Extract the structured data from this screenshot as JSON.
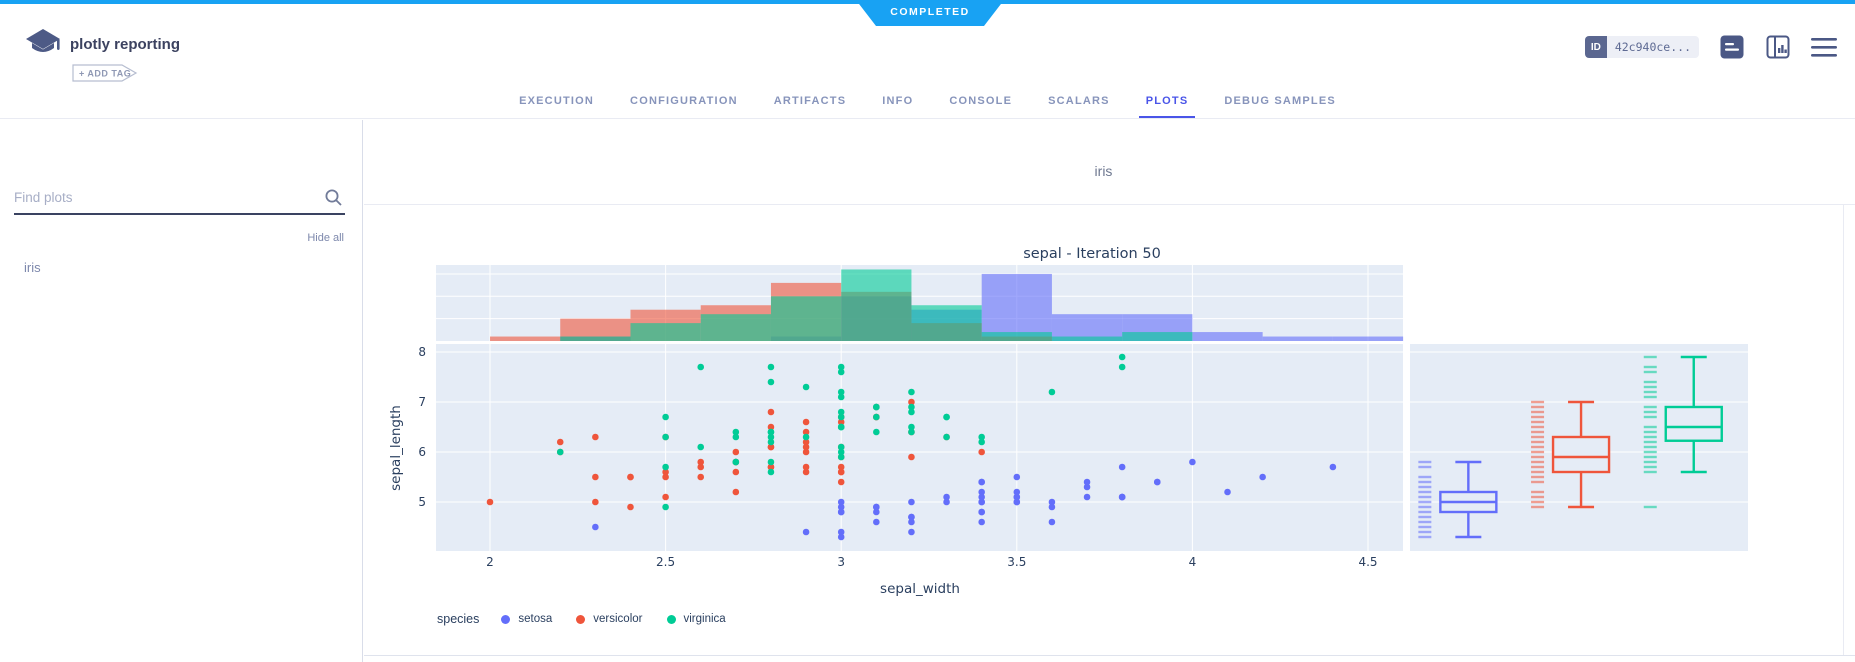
{
  "header": {
    "status_badge": "COMPLETED",
    "title": "plotly reporting",
    "add_tag_label": "+ ADD TAG",
    "id_label": "ID",
    "id_value": "42c940ce..."
  },
  "icons": {
    "logo": "experiment-logo-icon",
    "header_right": [
      "console-output-icon",
      "split-view-chart-icon",
      "menu-icon"
    ],
    "tabbar_right": "auto-refresh-icon",
    "sidebar": "search-icon"
  },
  "tabs": {
    "items": [
      "EXECUTION",
      "CONFIGURATION",
      "ARTIFACTS",
      "INFO",
      "CONSOLE",
      "SCALARS",
      "PLOTS",
      "DEBUG SAMPLES"
    ],
    "active": "PLOTS"
  },
  "sidebar": {
    "search_placeholder": "Find plots",
    "hide_all_label": "Hide all",
    "items": [
      "iris"
    ]
  },
  "content": {
    "group_title": "iris"
  },
  "colors": {
    "status_blue": "#18a2f3",
    "active_tab_blue": "#4a55e8",
    "plot_background": "#e5ecf6",
    "plot_text": "#2a3f5f"
  },
  "chart_data": {
    "type": "scatter",
    "title": "sepal - Iteration 50",
    "xlabel": "sepal_width",
    "ylabel": "sepal_length",
    "legend_title": "species",
    "x_ticks": [
      2,
      2.5,
      3,
      3.5,
      4,
      4.5
    ],
    "y_ticks": [
      5,
      6,
      7,
      8
    ],
    "xlim": [
      1.85,
      4.6
    ],
    "ylim": [
      4.02,
      8.16
    ],
    "grid": true,
    "legend_position": "bottom-left",
    "marginal_top": "overlaid histograms, bin width 0.2, count max ~17",
    "marginal_right": "box plot with rug of all points, whiskers 1.5*IQR",
    "series": [
      {
        "name": "setosa",
        "color": "#636EFA",
        "points_width_length": [
          [
            3.5,
            5.1
          ],
          [
            3.0,
            4.9
          ],
          [
            3.2,
            4.7
          ],
          [
            3.1,
            4.6
          ],
          [
            3.6,
            5.0
          ],
          [
            3.9,
            5.4
          ],
          [
            3.4,
            4.6
          ],
          [
            3.4,
            5.0
          ],
          [
            2.9,
            4.4
          ],
          [
            3.1,
            4.9
          ],
          [
            3.7,
            5.4
          ],
          [
            3.4,
            4.8
          ],
          [
            3.0,
            4.8
          ],
          [
            3.0,
            4.3
          ],
          [
            4.0,
            5.8
          ],
          [
            4.4,
            5.7
          ],
          [
            3.9,
            5.4
          ],
          [
            3.5,
            5.1
          ],
          [
            3.8,
            5.7
          ],
          [
            3.8,
            5.1
          ],
          [
            3.4,
            5.4
          ],
          [
            3.7,
            5.1
          ],
          [
            3.6,
            4.6
          ],
          [
            3.3,
            5.1
          ],
          [
            3.4,
            4.8
          ],
          [
            3.0,
            5.0
          ],
          [
            3.4,
            5.0
          ],
          [
            3.5,
            5.2
          ],
          [
            3.4,
            5.2
          ],
          [
            3.2,
            4.7
          ],
          [
            3.1,
            4.8
          ],
          [
            3.4,
            5.4
          ],
          [
            4.1,
            5.2
          ],
          [
            4.2,
            5.5
          ],
          [
            3.1,
            4.9
          ],
          [
            3.2,
            5.0
          ],
          [
            3.5,
            5.5
          ],
          [
            3.6,
            4.9
          ],
          [
            3.0,
            4.4
          ],
          [
            3.4,
            5.1
          ],
          [
            3.5,
            5.0
          ],
          [
            2.3,
            4.5
          ],
          [
            3.2,
            4.4
          ],
          [
            3.5,
            5.0
          ],
          [
            3.8,
            5.1
          ],
          [
            3.0,
            4.8
          ],
          [
            3.8,
            5.1
          ],
          [
            3.2,
            4.6
          ],
          [
            3.7,
            5.3
          ],
          [
            3.3,
            5.0
          ]
        ]
      },
      {
        "name": "versicolor",
        "color": "#EF553B",
        "points_width_length": [
          [
            3.2,
            7.0
          ],
          [
            3.2,
            6.4
          ],
          [
            3.1,
            6.9
          ],
          [
            2.3,
            5.5
          ],
          [
            2.8,
            6.5
          ],
          [
            2.8,
            5.7
          ],
          [
            3.3,
            6.3
          ],
          [
            2.4,
            4.9
          ],
          [
            2.9,
            6.6
          ],
          [
            2.7,
            5.2
          ],
          [
            2.0,
            5.0
          ],
          [
            3.0,
            5.9
          ],
          [
            2.2,
            6.0
          ],
          [
            2.9,
            6.1
          ],
          [
            2.9,
            5.6
          ],
          [
            3.1,
            6.7
          ],
          [
            3.0,
            5.6
          ],
          [
            2.7,
            5.8
          ],
          [
            2.2,
            6.2
          ],
          [
            2.5,
            5.6
          ],
          [
            3.2,
            5.9
          ],
          [
            2.8,
            6.1
          ],
          [
            2.5,
            6.3
          ],
          [
            2.8,
            6.1
          ],
          [
            2.9,
            6.4
          ],
          [
            3.0,
            6.6
          ],
          [
            2.8,
            6.8
          ],
          [
            3.0,
            6.7
          ],
          [
            2.9,
            6.0
          ],
          [
            2.6,
            5.7
          ],
          [
            2.4,
            5.5
          ],
          [
            2.4,
            5.5
          ],
          [
            2.7,
            5.8
          ],
          [
            2.7,
            6.0
          ],
          [
            3.0,
            5.4
          ],
          [
            3.4,
            6.0
          ],
          [
            3.1,
            6.7
          ],
          [
            2.3,
            6.3
          ],
          [
            3.0,
            5.6
          ],
          [
            2.5,
            5.5
          ],
          [
            2.6,
            5.5
          ],
          [
            3.0,
            6.1
          ],
          [
            2.6,
            5.8
          ],
          [
            2.3,
            5.0
          ],
          [
            2.7,
            5.6
          ],
          [
            3.0,
            5.7
          ],
          [
            2.9,
            5.7
          ],
          [
            2.9,
            6.2
          ],
          [
            2.5,
            5.1
          ],
          [
            2.8,
            5.7
          ]
        ]
      },
      {
        "name": "virginica",
        "color": "#00CC96",
        "points_width_length": [
          [
            3.3,
            6.3
          ],
          [
            2.7,
            5.8
          ],
          [
            3.0,
            7.1
          ],
          [
            2.9,
            6.3
          ],
          [
            3.0,
            6.5
          ],
          [
            3.0,
            7.6
          ],
          [
            2.5,
            4.9
          ],
          [
            2.9,
            7.3
          ],
          [
            2.5,
            6.7
          ],
          [
            3.6,
            7.2
          ],
          [
            3.2,
            6.5
          ],
          [
            2.7,
            6.4
          ],
          [
            3.0,
            6.8
          ],
          [
            2.5,
            5.7
          ],
          [
            2.8,
            5.8
          ],
          [
            3.2,
            6.4
          ],
          [
            3.0,
            6.5
          ],
          [
            3.8,
            7.7
          ],
          [
            2.6,
            7.7
          ],
          [
            2.2,
            6.0
          ],
          [
            3.2,
            6.9
          ],
          [
            2.8,
            5.6
          ],
          [
            2.8,
            7.7
          ],
          [
            2.7,
            6.3
          ],
          [
            3.3,
            6.7
          ],
          [
            3.2,
            7.2
          ],
          [
            2.8,
            6.2
          ],
          [
            3.0,
            6.1
          ],
          [
            2.8,
            6.4
          ],
          [
            3.0,
            7.2
          ],
          [
            2.8,
            7.4
          ],
          [
            3.8,
            7.9
          ],
          [
            2.8,
            6.4
          ],
          [
            2.8,
            6.3
          ],
          [
            2.6,
            6.1
          ],
          [
            3.0,
            7.7
          ],
          [
            3.4,
            6.3
          ],
          [
            3.1,
            6.4
          ],
          [
            3.0,
            6.0
          ],
          [
            3.1,
            6.9
          ],
          [
            3.1,
            6.7
          ],
          [
            3.1,
            6.9
          ],
          [
            2.7,
            5.8
          ],
          [
            3.2,
            6.8
          ],
          [
            3.3,
            6.7
          ],
          [
            3.0,
            6.7
          ],
          [
            2.5,
            6.3
          ],
          [
            3.0,
            6.5
          ],
          [
            3.4,
            6.2
          ],
          [
            3.0,
            5.9
          ]
        ]
      }
    ]
  }
}
